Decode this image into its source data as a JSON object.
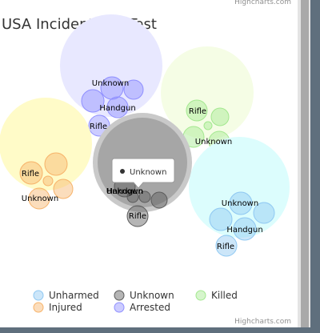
{
  "page": {
    "credit_top": "Highcharts.com",
    "credit_bottom": "Highcharts.com"
  },
  "chart_data": {
    "type": "packed-bubble",
    "title": "USA Incidents by Test",
    "legend_position": "bottom",
    "groups": [
      {
        "name": "Arrested",
        "color": "#8f8fff",
        "children": [
          {
            "label": "Unknown",
            "value": 3
          },
          {
            "label": "Handgun",
            "value": 3
          },
          {
            "label": "Rifle",
            "value": 2
          }
        ]
      },
      {
        "name": "Killed",
        "color": "#a3e88f",
        "children": [
          {
            "label": "Rifle",
            "value": 2
          },
          {
            "label": "Unknown",
            "value": 2
          }
        ]
      },
      {
        "name": "Injured",
        "color": "#f7b36a",
        "children": [
          {
            "label": "Rifle",
            "value": 2
          },
          {
            "label": "Unknown",
            "value": 2
          }
        ]
      },
      {
        "name": "Unknown",
        "color": "#5b5b5b",
        "children": [
          {
            "label": "Unknown",
            "value": 2
          },
          {
            "label": "Handgun",
            "value": 2
          },
          {
            "label": "Rifle",
            "value": 2
          }
        ]
      },
      {
        "name": "Unharmed",
        "color": "#8fc8f2",
        "children": [
          {
            "label": "Unknown",
            "value": 3
          },
          {
            "label": "Handgun",
            "value": 3
          },
          {
            "label": "Rifle",
            "value": 2
          }
        ]
      }
    ],
    "legend": [
      "Unharmed",
      "Unknown",
      "Killed",
      "Injured",
      "Arrested"
    ],
    "tooltip": "Unknown"
  }
}
